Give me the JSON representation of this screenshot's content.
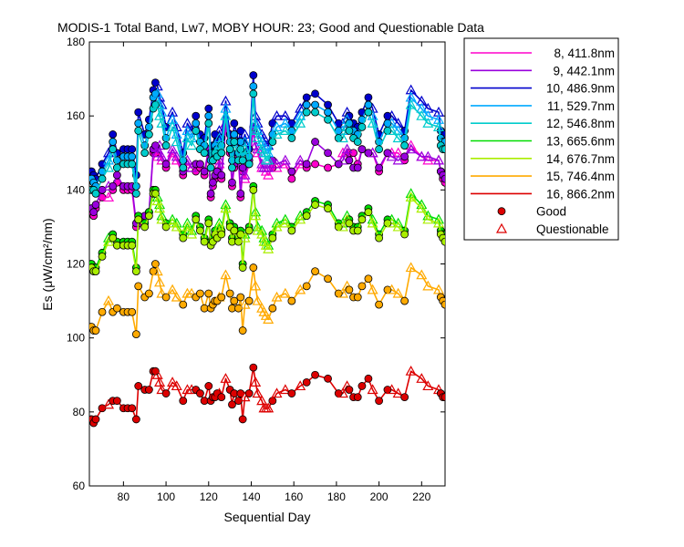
{
  "chart_data": {
    "type": "line",
    "title": "MODIS-1 Total Band,  Lw7, MOBY HOUR: 23;  Good and Questionable Data",
    "xlabel": "Sequential Day",
    "ylabel": "Es (μW/cm²/nm)",
    "xlim": [
      64,
      231
    ],
    "ylim": [
      60,
      180
    ],
    "xticks": [
      80,
      100,
      120,
      140,
      160,
      180,
      200,
      220
    ],
    "yticks": [
      60,
      80,
      100,
      120,
      140,
      160,
      180
    ],
    "grid": false,
    "legend_position": "outside-right",
    "markers": {
      "good": {
        "label": "Good",
        "shape": "circle"
      },
      "questionable": {
        "label": "Questionable",
        "shape": "triangle"
      }
    },
    "x": [
      65,
      66,
      67,
      70,
      73,
      75,
      77,
      80,
      82,
      84,
      86,
      87,
      90,
      92,
      94,
      95,
      96,
      97,
      98,
      100,
      103,
      105,
      108,
      110,
      112,
      114,
      116,
      118,
      120,
      121,
      122,
      123,
      124,
      125,
      126,
      128,
      130,
      131,
      132,
      134,
      135,
      136,
      137,
      139,
      141,
      142,
      143,
      145,
      146,
      147,
      148,
      150,
      152,
      156,
      159,
      163,
      166,
      170,
      176,
      181,
      183,
      185,
      186,
      188,
      190,
      192,
      195,
      197,
      200,
      204,
      206,
      209,
      212,
      215,
      220,
      223,
      228,
      229,
      230,
      231
    ],
    "flags": [
      "G",
      "G",
      "G",
      "G",
      "Q",
      "G",
      "G",
      "G",
      "G",
      "G",
      "G",
      "G",
      "G",
      "G",
      "G",
      "G",
      "Q",
      "Q",
      "Q",
      "G",
      "Q",
      "Q",
      "G",
      "Q",
      "Q",
      "G",
      "G",
      "G",
      "G",
      "G",
      "G",
      "G",
      "G",
      "Q",
      "G",
      "Q",
      "G",
      "G",
      "G",
      "G",
      "G",
      "G",
      "Q",
      "G",
      "G",
      "Q",
      "Q",
      "Q",
      "Q",
      "Q",
      "Q",
      "G",
      "Q",
      "Q",
      "G",
      "Q",
      "G",
      "G",
      "G",
      "G",
      "Q",
      "Q",
      "G",
      "G",
      "G",
      "G",
      "G",
      "Q",
      "G",
      "G",
      "Q",
      "Q",
      "G",
      "Q",
      "Q",
      "Q",
      "Q",
      "G",
      "G",
      "G"
    ],
    "series": [
      {
        "name": "8, 411.8nm",
        "color": "#ff00cc",
        "values": [
          134,
          133,
          135,
          138,
          138,
          140,
          142,
          140,
          140,
          140,
          130,
          131,
          132,
          134,
          150,
          150,
          149,
          150,
          148,
          146,
          150,
          148,
          144,
          147,
          146,
          145,
          146,
          144,
          150,
          138,
          141,
          143,
          144,
          147,
          143,
          157,
          150,
          141,
          146,
          148,
          138,
          145,
          143,
          147,
          156,
          152,
          150,
          146,
          146,
          145,
          144,
          146,
          146,
          147,
          143,
          147,
          146,
          147,
          146,
          147,
          150,
          150,
          150,
          150,
          147,
          151,
          150,
          150,
          145,
          150,
          150,
          150,
          148,
          152,
          149,
          148,
          148,
          145,
          143,
          142
        ]
      },
      {
        "name": "9, 442.1nm",
        "color": "#9900dd",
        "values": [
          135,
          134,
          136,
          140,
          141,
          141,
          144,
          141,
          141,
          141,
          131,
          132,
          133,
          134,
          151,
          152,
          150,
          152,
          149,
          147,
          151,
          149,
          145,
          148,
          146,
          147,
          147,
          145,
          151,
          139,
          142,
          144,
          145,
          148,
          144,
          158,
          151,
          142,
          147,
          149,
          139,
          146,
          144,
          148,
          157,
          152,
          151,
          147,
          146,
          146,
          146,
          148,
          147,
          148,
          145,
          148,
          147,
          153,
          150,
          147,
          148,
          151,
          148,
          146,
          146,
          151,
          150,
          150,
          146,
          150,
          149,
          148,
          149,
          151,
          149,
          149,
          148,
          145,
          144,
          143
        ]
      },
      {
        "name": "10, 486.9nm",
        "color": "#0000cc",
        "values": [
          145,
          144,
          143,
          147,
          150,
          155,
          150,
          151,
          151,
          151,
          144,
          161,
          155,
          159,
          167,
          169,
          168,
          165,
          163,
          157,
          161,
          157,
          150,
          158,
          156,
          160,
          155,
          154,
          162,
          150,
          152,
          155,
          153,
          156,
          154,
          164,
          155,
          150,
          158,
          153,
          156,
          153,
          155,
          151,
          171,
          160,
          158,
          155,
          154,
          152,
          152,
          158,
          160,
          160,
          158,
          162,
          165,
          166,
          163,
          158,
          158,
          161,
          160,
          158,
          157,
          161,
          165,
          162,
          155,
          160,
          160,
          158,
          156,
          167,
          164,
          162,
          161,
          156,
          155,
          155
        ]
      },
      {
        "name": "11, 529.7nm",
        "color": "#00aaff",
        "values": [
          143,
          142,
          141,
          145,
          148,
          153,
          148,
          149,
          149,
          149,
          141,
          158,
          152,
          157,
          165,
          166,
          166,
          163,
          161,
          154,
          159,
          155,
          148,
          156,
          154,
          158,
          153,
          152,
          160,
          148,
          150,
          152,
          151,
          154,
          152,
          162,
          153,
          148,
          155,
          150,
          153,
          150,
          153,
          149,
          168,
          158,
          156,
          153,
          152,
          150,
          150,
          155,
          157,
          158,
          156,
          160,
          163,
          163,
          161,
          156,
          156,
          159,
          158,
          156,
          155,
          159,
          163,
          160,
          153,
          158,
          158,
          156,
          154,
          165,
          162,
          160,
          159,
          154,
          153,
          153
        ]
      },
      {
        "name": "12, 546.8nm",
        "color": "#00cccc",
        "values": [
          140,
          140,
          139,
          143,
          146,
          151,
          146,
          147,
          147,
          147,
          139,
          156,
          150,
          155,
          162,
          163,
          163,
          160,
          158,
          152,
          157,
          153,
          146,
          154,
          152,
          156,
          151,
          150,
          158,
          146,
          148,
          150,
          149,
          152,
          150,
          160,
          151,
          146,
          153,
          148,
          151,
          148,
          151,
          147,
          166,
          156,
          154,
          151,
          150,
          148,
          148,
          153,
          155,
          156,
          154,
          158,
          161,
          161,
          159,
          154,
          154,
          157,
          156,
          154,
          153,
          157,
          161,
          158,
          151,
          156,
          156,
          154,
          152,
          163,
          160,
          158,
          157,
          152,
          151,
          151
        ]
      },
      {
        "name": "13, 665.6nm",
        "color": "#00dd00",
        "values": [
          120,
          119,
          119,
          123,
          127,
          128,
          126,
          126,
          126,
          126,
          119,
          133,
          131,
          134,
          140,
          140,
          138,
          136,
          133,
          131,
          132,
          131,
          128,
          131,
          129,
          133,
          130,
          127,
          132,
          126,
          127,
          129,
          128,
          131,
          129,
          136,
          131,
          127,
          130,
          127,
          129,
          120,
          128,
          130,
          141,
          134,
          130,
          129,
          127,
          126,
          125,
          128,
          131,
          132,
          130,
          133,
          134,
          137,
          136,
          131,
          131,
          133,
          132,
          130,
          130,
          133,
          135,
          132,
          128,
          132,
          132,
          131,
          129,
          139,
          136,
          133,
          132,
          129,
          128,
          127
        ]
      },
      {
        "name": "14, 676.7nm",
        "color": "#aaee00",
        "values": [
          119,
          118,
          118,
          122,
          126,
          127,
          125,
          125,
          125,
          125,
          118,
          132,
          130,
          133,
          139,
          139,
          137,
          135,
          132,
          130,
          131,
          130,
          127,
          130,
          128,
          132,
          129,
          126,
          131,
          125,
          126,
          128,
          127,
          130,
          128,
          135,
          130,
          126,
          129,
          126,
          128,
          119,
          127,
          129,
          140,
          133,
          129,
          128,
          126,
          125,
          124,
          127,
          130,
          131,
          129,
          132,
          133,
          136,
          135,
          130,
          130,
          132,
          131,
          129,
          129,
          132,
          134,
          131,
          127,
          131,
          131,
          130,
          128,
          138,
          135,
          132,
          131,
          128,
          127,
          126
        ]
      },
      {
        "name": "15, 746.4nm",
        "color": "#ffaa00",
        "values": [
          103,
          102,
          102,
          107,
          110,
          107,
          108,
          107,
          107,
          107,
          101,
          114,
          111,
          112,
          118,
          120,
          118,
          115,
          112,
          111,
          113,
          111,
          109,
          112,
          112,
          111,
          112,
          108,
          112,
          108,
          109,
          110,
          110,
          111,
          111,
          117,
          112,
          108,
          110,
          108,
          111,
          102,
          109,
          110,
          119,
          114,
          110,
          108,
          107,
          106,
          105,
          108,
          111,
          112,
          110,
          113,
          114,
          118,
          116,
          112,
          112,
          114,
          113,
          111,
          111,
          114,
          116,
          113,
          109,
          113,
          113,
          112,
          110,
          119,
          117,
          114,
          113,
          111,
          110,
          109
        ]
      },
      {
        "name": "16, 866.2nm",
        "color": "#dd0000",
        "values": [
          78,
          77,
          78,
          81,
          82,
          83,
          83,
          81,
          81,
          81,
          78,
          87,
          86,
          86,
          91,
          91,
          90,
          88,
          86,
          85,
          88,
          87,
          83,
          86,
          86,
          86,
          85,
          83,
          87,
          83,
          84,
          84,
          85,
          85,
          84,
          89,
          86,
          82,
          85,
          83,
          85,
          78,
          84,
          85,
          92,
          88,
          85,
          83,
          81,
          81,
          81,
          83,
          85,
          86,
          85,
          87,
          88,
          90,
          89,
          85,
          85,
          87,
          86,
          84,
          84,
          87,
          89,
          86,
          83,
          86,
          86,
          85,
          84,
          91,
          89,
          87,
          86,
          85,
          84,
          84
        ]
      }
    ]
  }
}
